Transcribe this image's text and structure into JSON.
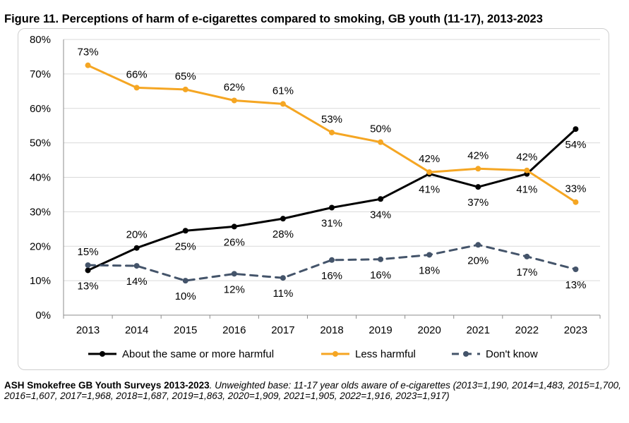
{
  "title": "Figure 11. Perceptions of harm of e-cigarettes compared to smoking, GB youth (11-17), 2013-2023",
  "source": {
    "name": "ASH Smokefree GB Youth Surveys 2013-2023",
    "note": ". Unweighted base: 11-17 year olds aware of e-cigarettes (2013=1,190, 2014=1,483, 2015=1,700, 2016=1,607, 2017=1,968, 2018=1,687, 2019=1,863, 2020=1,909, 2021=1,905, 2022=1,916, 2023=1,917)"
  },
  "chart_data": {
    "type": "line",
    "x": [
      "2013",
      "2014",
      "2015",
      "2016",
      "2017",
      "2018",
      "2019",
      "2020",
      "2021",
      "2022",
      "2023"
    ],
    "ylim": [
      0,
      80
    ],
    "yticks": [
      "0%",
      "10%",
      "20%",
      "30%",
      "40%",
      "50%",
      "60%",
      "70%",
      "80%"
    ],
    "grid": true,
    "legend": "bottom",
    "series": [
      {
        "name": "About the same or more harmful",
        "color": "#000000",
        "dashed": false,
        "values": [
          13,
          19.5,
          24.5,
          25.7,
          28,
          31.2,
          33.7,
          41,
          37.2,
          41,
          54
        ],
        "labels": [
          "13%",
          "20%",
          "25%",
          "26%",
          "28%",
          "31%",
          "34%",
          "41%",
          "37%",
          "41%",
          "54%"
        ],
        "label_pos": [
          "below",
          "above",
          "below",
          "below",
          "below",
          "below",
          "below",
          "below",
          "below",
          "below",
          "below"
        ]
      },
      {
        "name": "Less harmful",
        "color": "#f5a623",
        "dashed": false,
        "values": [
          72.5,
          66,
          65.5,
          62.3,
          61.3,
          53,
          50.2,
          41.5,
          42.5,
          42,
          32.8
        ],
        "labels": [
          "73%",
          "66%",
          "65%",
          "62%",
          "61%",
          "53%",
          "50%",
          "42%",
          "42%",
          "42%",
          "33%"
        ],
        "label_pos": [
          "above",
          "above",
          "above",
          "above",
          "above",
          "above",
          "above",
          "above",
          "above",
          "above",
          "above"
        ]
      },
      {
        "name": "Don't know",
        "color": "#44546a",
        "dashed": true,
        "values": [
          14.5,
          14.3,
          10,
          12,
          10.8,
          16,
          16.2,
          17.5,
          20.4,
          17,
          13.3
        ],
        "labels": [
          "15%",
          "14%",
          "10%",
          "12%",
          "11%",
          "16%",
          "16%",
          "18%",
          "20%",
          "17%",
          "13%"
        ],
        "label_pos": [
          "above",
          "below",
          "below",
          "below",
          "below",
          "below",
          "below",
          "below",
          "below",
          "below",
          "below"
        ]
      }
    ]
  }
}
